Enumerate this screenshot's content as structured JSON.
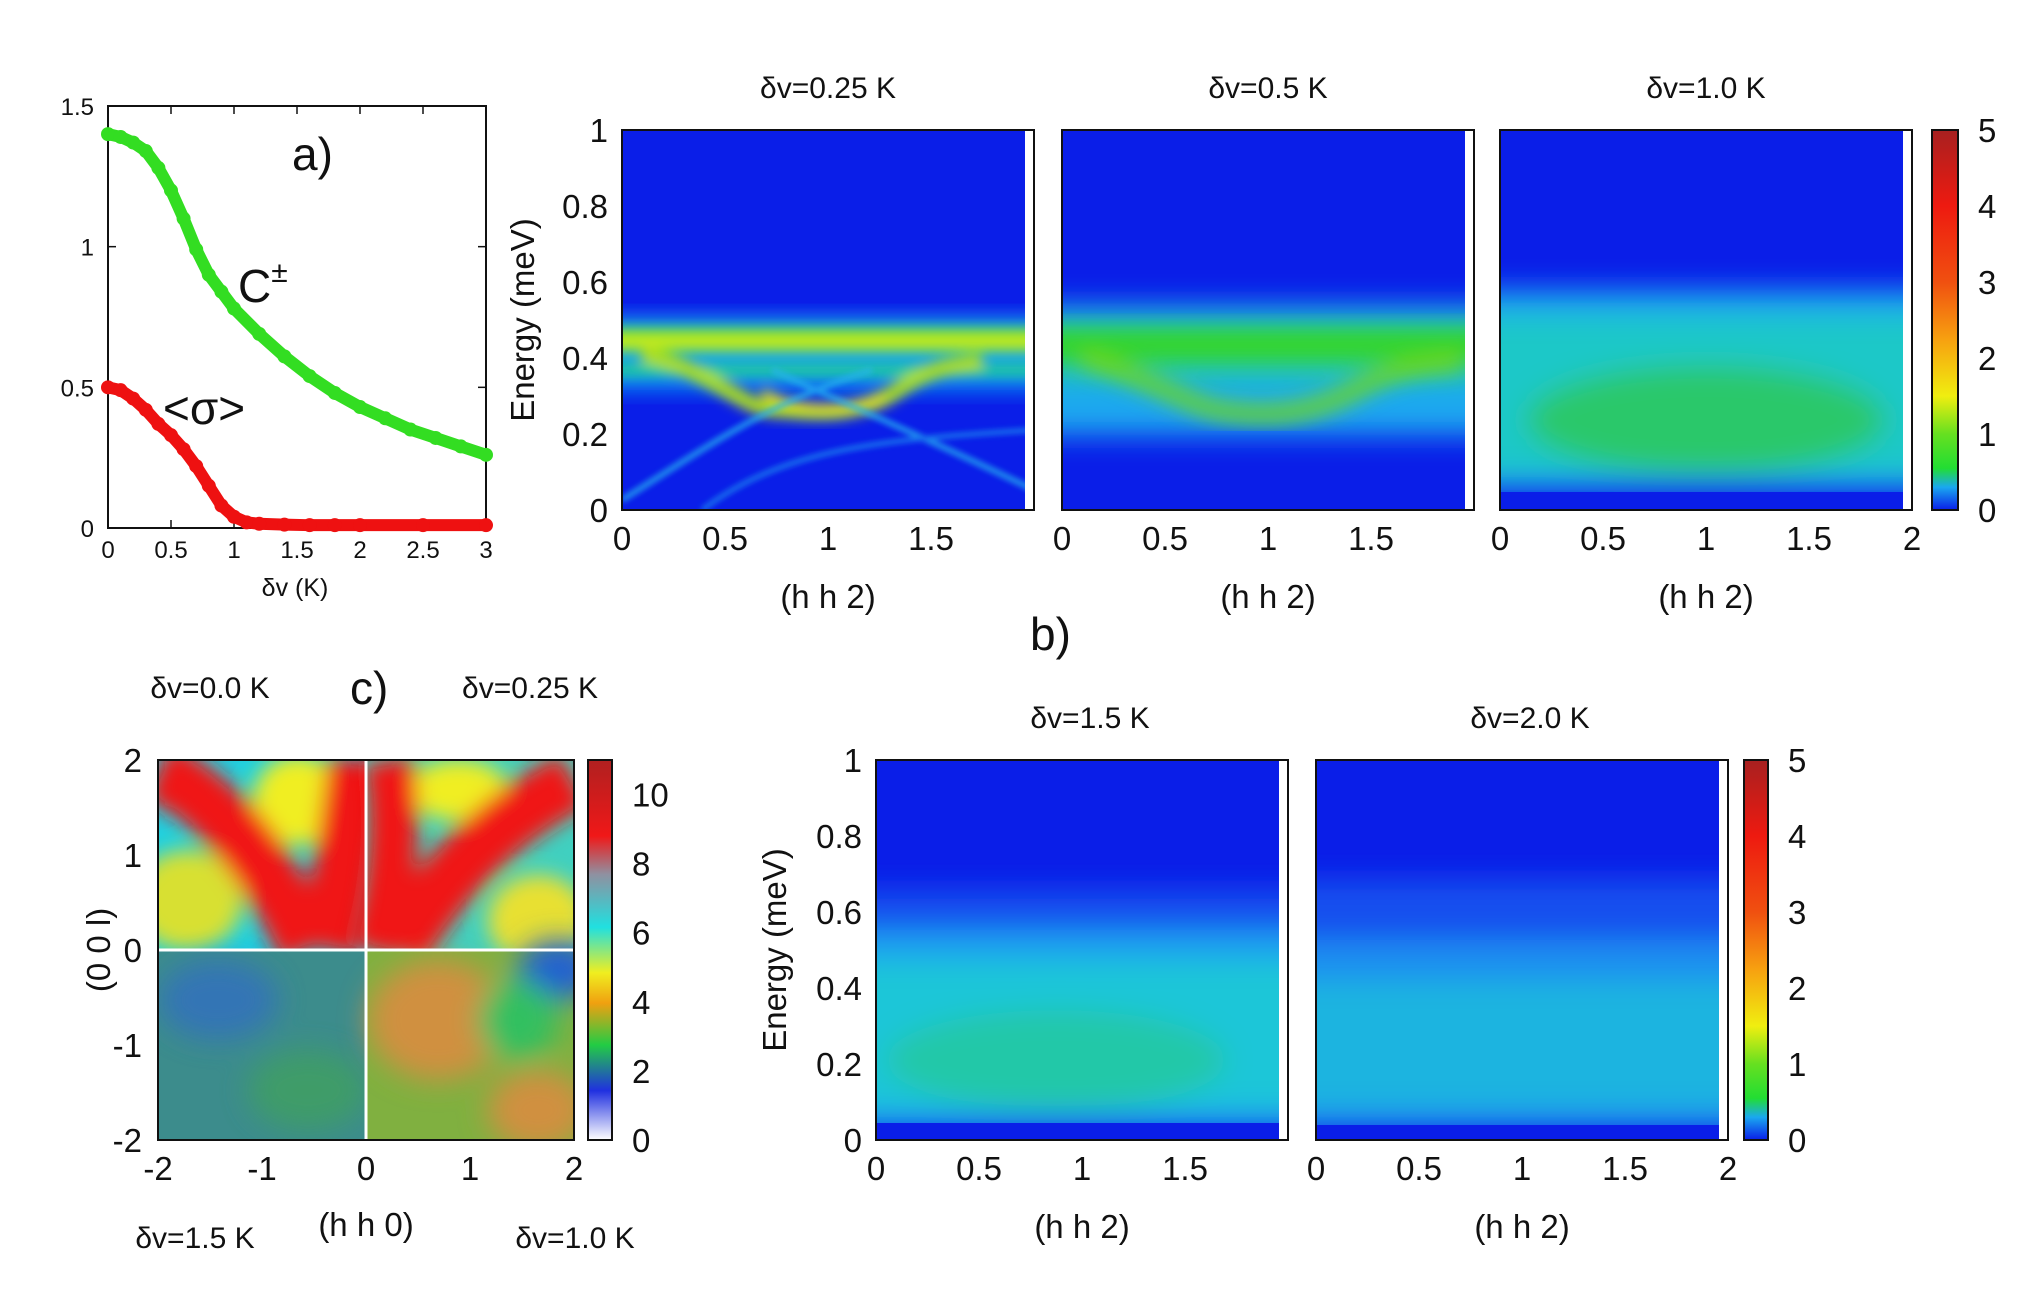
{
  "colors": {
    "C_curve": "#33dd22",
    "sigma_curve": "#ee1111",
    "map_low": "#0a1ee8",
    "map_mid": "#22dd33",
    "map_high": "#ee2211"
  },
  "chart_data": [
    {
      "id": "a",
      "type": "line",
      "panel_label": "a)",
      "xlabel": "δv (K)",
      "ylabel": "",
      "xlim": [
        0,
        3
      ],
      "ylim": [
        0,
        1.5
      ],
      "xticks": [
        "0",
        "0.5",
        "1",
        "1.5",
        "2",
        "2.5",
        "3"
      ],
      "yticks": [
        "0",
        "0.5",
        "1",
        "1.5"
      ],
      "series": [
        {
          "name": "C±",
          "label_base": "C",
          "label_sup": "±",
          "color": "#33dd22",
          "x": [
            0,
            0.1,
            0.2,
            0.3,
            0.4,
            0.5,
            0.6,
            0.7,
            0.8,
            0.9,
            1.0,
            1.2,
            1.4,
            1.6,
            1.8,
            2.0,
            2.2,
            2.4,
            2.6,
            2.8,
            3.0
          ],
          "y": [
            1.4,
            1.39,
            1.37,
            1.34,
            1.28,
            1.2,
            1.1,
            0.99,
            0.9,
            0.84,
            0.78,
            0.69,
            0.61,
            0.54,
            0.48,
            0.43,
            0.39,
            0.35,
            0.32,
            0.29,
            0.26
          ]
        },
        {
          "name": "<σ>",
          "color": "#ee1111",
          "x": [
            0,
            0.1,
            0.2,
            0.3,
            0.4,
            0.5,
            0.6,
            0.7,
            0.8,
            0.9,
            1.0,
            1.1,
            1.2,
            1.4,
            1.6,
            1.8,
            2.0,
            2.5,
            3.0
          ],
          "y": [
            0.5,
            0.49,
            0.46,
            0.42,
            0.37,
            0.33,
            0.28,
            0.22,
            0.15,
            0.08,
            0.04,
            0.02,
            0.015,
            0.012,
            0.01,
            0.01,
            0.01,
            0.01,
            0.01
          ]
        }
      ]
    },
    {
      "id": "b",
      "type": "heatmap",
      "panel_label": "b)",
      "ylabel": "Energy (meV)",
      "xlabel": "(h h 2)",
      "xlim": [
        0,
        2
      ],
      "ylim": [
        0,
        1
      ],
      "xticks": [
        "0",
        "0.5",
        "1",
        "1.5"
      ],
      "xticks_last": [
        "0",
        "0.5",
        "1",
        "1.5",
        "2"
      ],
      "yticks": [
        "0",
        "0.2",
        "0.4",
        "0.6",
        "0.8",
        "1"
      ],
      "colorbar": {
        "min": 0,
        "max": 5,
        "ticks": [
          "0",
          "1",
          "2",
          "3",
          "4",
          "5"
        ]
      },
      "maps": [
        {
          "title": "δv=0.25 K",
          "delta_v": 0.25
        },
        {
          "title": "δv=0.5 K",
          "delta_v": 0.5
        },
        {
          "title": "δv=1.0 K",
          "delta_v": 1.0
        },
        {
          "title": "δv=1.5 K",
          "delta_v": 1.5
        },
        {
          "title": "δv=2.0 K",
          "delta_v": 2.0
        }
      ]
    },
    {
      "id": "c",
      "type": "heatmap",
      "panel_label": "c)",
      "xlabel": "(h h 0)",
      "ylabel": "(0 0 l)",
      "xlim": [
        -2,
        2
      ],
      "ylim": [
        -2,
        2
      ],
      "xticks": [
        "-2",
        "-1",
        "0",
        "1",
        "2"
      ],
      "yticks": [
        "-2",
        "-1",
        "0",
        "1",
        "2"
      ],
      "colorbar": {
        "min": 0,
        "max": 11,
        "ticks": [
          "0",
          "2",
          "4",
          "6",
          "8",
          "10"
        ]
      },
      "quadrants": [
        {
          "position": "top-left",
          "title": "δv=0.0 K"
        },
        {
          "position": "top-right",
          "title": "δv=0.25 K"
        },
        {
          "position": "bottom-left",
          "title": "δv=1.5 K"
        },
        {
          "position": "bottom-right",
          "title": "δv=1.0 K"
        }
      ]
    }
  ]
}
